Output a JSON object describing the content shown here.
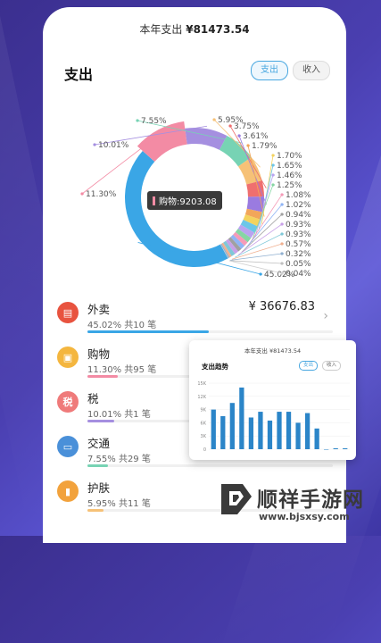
{
  "header": {
    "year_total_label": "本年支出",
    "year_total_amount": "¥81473.54",
    "title": "支出",
    "toggle_expense": "支出",
    "toggle_income": "收入"
  },
  "tooltip": {
    "text": "购物:9203.08"
  },
  "chart_data": {
    "type": "pie",
    "categories": [
      "外卖",
      "购物",
      "税",
      "交通",
      "护肤",
      "",
      "",
      "",
      "",
      "",
      "",
      "",
      "",
      "",
      "",
      "",
      "",
      "",
      "",
      "",
      ""
    ],
    "values": [
      45.02,
      11.3,
      10.01,
      7.55,
      5.95,
      3.75,
      3.61,
      1.79,
      1.7,
      1.65,
      1.46,
      1.25,
      1.08,
      1.02,
      0.94,
      0.93,
      0.93,
      0.57,
      0.32,
      0.05,
      0.04
    ],
    "labels": [
      "45.02%",
      "11.30%",
      "10.01%",
      "7.55%",
      "5.95%",
      "3.75%",
      "3.61%",
      "1.79%",
      "1.70%",
      "1.65%",
      "1.46%",
      "1.25%",
      "1.08%",
      "1.02%",
      "0.94%",
      "0.93%",
      "0.93%",
      "0.57%",
      "0.32%",
      "0.05%",
      "0.04%"
    ],
    "colors": [
      "#3aa6e6",
      "#f38ba4",
      "#a58fe0",
      "#77d3b4",
      "#f6c177",
      "#ef6f6f",
      "#9a7be0",
      "#f2a65a",
      "#f4d35e",
      "#6cc6e8",
      "#b9a4f0",
      "#86d6a4",
      "#f59bb8",
      "#8fb4f5",
      "#a0a0a0",
      "#c8a0e8",
      "#7fc8d8",
      "#f0b090",
      "#90b0d0",
      "#c0c0c0",
      "#d0d0d0"
    ],
    "highlighted": "购物"
  },
  "list": [
    {
      "name": "外卖",
      "meta": "45.02% 共10 笔",
      "amount": "¥ 36676.83",
      "percent": 45.02,
      "color": "#3aa6e6",
      "icon": "takeout-icon",
      "icon_bg": "#e8533f"
    },
    {
      "name": "购物",
      "meta": "11.30% 共95 笔",
      "amount": "",
      "percent": 11.3,
      "color": "#f38ba4",
      "icon": "shopping-icon",
      "icon_bg": "#f4b63f"
    },
    {
      "name": "税",
      "meta": "10.01% 共1 笔",
      "amount": "",
      "percent": 10.01,
      "color": "#a58fe0",
      "icon": "tax-icon",
      "icon_bg": "#ef7a7a"
    },
    {
      "name": "交通",
      "meta": "7.55% 共29 笔",
      "amount": "",
      "percent": 7.55,
      "color": "#77d3b4",
      "icon": "bus-icon",
      "icon_bg": "#4a90d9"
    },
    {
      "name": "护肤",
      "meta": "5.95% 共11 笔",
      "amount": "",
      "percent": 5.95,
      "color": "#f6c177",
      "icon": "skincare-icon",
      "icon_bg": "#f2a23c"
    }
  ],
  "overlay": {
    "year_total": "本年支出 ¥81473.54",
    "title": "支出趋势",
    "toggle_expense": "支出",
    "toggle_income": "收入",
    "bar_chart": {
      "type": "bar",
      "y_ticks": [
        "0",
        "3K",
        "6K",
        "9K",
        "12K",
        "15K"
      ],
      "ylim": [
        0,
        15000
      ],
      "values": [
        9000,
        7500,
        10500,
        14000,
        7200,
        8500,
        6500,
        8500,
        8500,
        6000,
        8200,
        4700,
        0,
        200,
        200
      ],
      "color": "#2b85c8"
    }
  },
  "watermark": {
    "text": "顺祥手游网",
    "url": "www.bjsxsy.com"
  }
}
